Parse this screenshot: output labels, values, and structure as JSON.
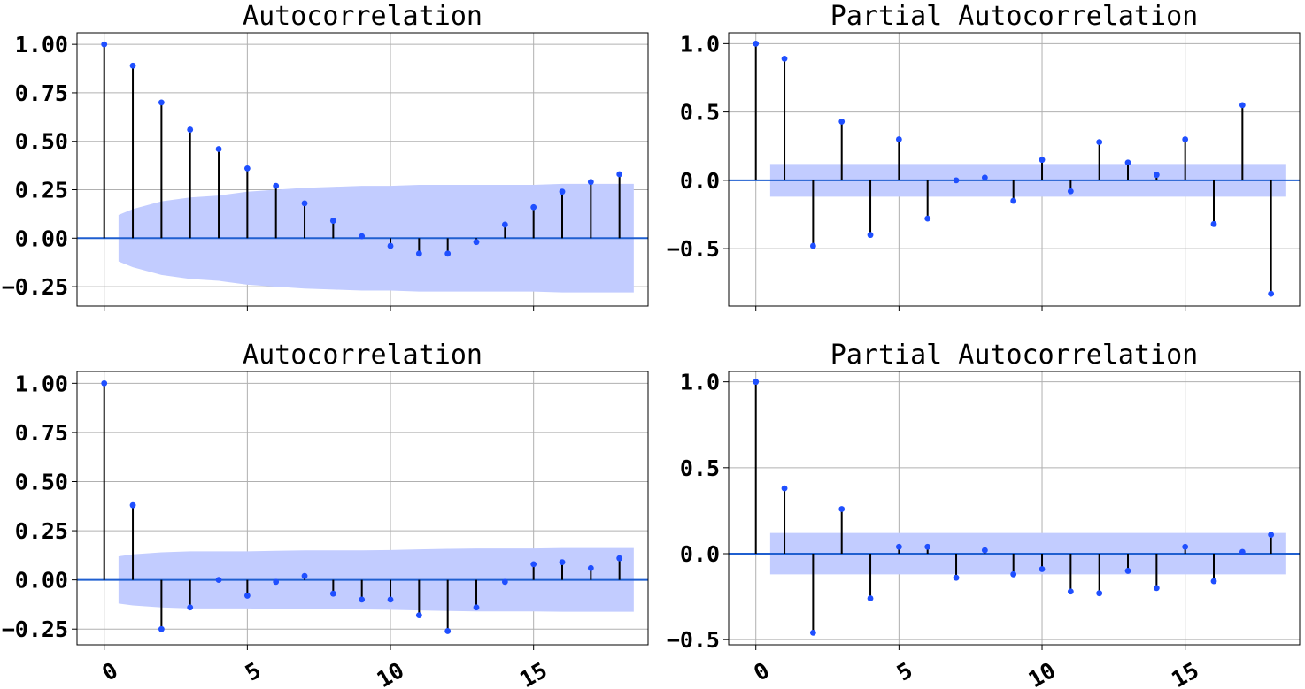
{
  "chart_data": [
    {
      "type": "stem",
      "title": "Autocorrelation",
      "x": [
        0,
        1,
        2,
        3,
        4,
        5,
        6,
        7,
        8,
        9,
        10,
        11,
        12,
        13,
        14,
        15,
        16,
        17,
        18
      ],
      "values": [
        1.0,
        0.89,
        0.7,
        0.56,
        0.46,
        0.36,
        0.27,
        0.18,
        0.09,
        0.01,
        -0.04,
        -0.08,
        -0.08,
        -0.02,
        0.07,
        0.16,
        0.24,
        0.29,
        0.33
      ],
      "confint": [
        0.12,
        0.15,
        0.19,
        0.21,
        0.22,
        0.24,
        0.25,
        0.26,
        0.265,
        0.27,
        0.27,
        0.275,
        0.275,
        0.275,
        0.275,
        0.275,
        0.28,
        0.28,
        0.28
      ],
      "xlim": [
        -0.95,
        19.0
      ],
      "ylim": [
        -0.35,
        1.06
      ],
      "xticks": [
        0,
        5,
        10,
        15
      ],
      "yticks": [
        "-0.25",
        "0.00",
        "0.25",
        "0.50",
        "0.75",
        "1.00"
      ],
      "show_xtick_labels": false,
      "grid": true
    },
    {
      "type": "stem",
      "title": "Partial Autocorrelation",
      "x": [
        0,
        1,
        2,
        3,
        4,
        5,
        6,
        7,
        8,
        9,
        10,
        11,
        12,
        13,
        14,
        15,
        16,
        17,
        18
      ],
      "values": [
        1.0,
        0.89,
        -0.48,
        0.43,
        -0.4,
        0.3,
        -0.28,
        0.0,
        0.02,
        -0.15,
        0.15,
        -0.08,
        0.28,
        0.13,
        0.04,
        0.3,
        -0.32,
        0.55,
        -0.83
      ],
      "confint": [
        0.12,
        0.12,
        0.12,
        0.12,
        0.12,
        0.12,
        0.12,
        0.12,
        0.12,
        0.12,
        0.12,
        0.12,
        0.12,
        0.12,
        0.12,
        0.12,
        0.12,
        0.12,
        0.12
      ],
      "xlim": [
        -0.95,
        19.0
      ],
      "ylim": [
        -0.92,
        1.08
      ],
      "xticks": [
        0,
        5,
        10,
        15
      ],
      "yticks": [
        "-0.5",
        "0.0",
        "0.5",
        "1.0"
      ],
      "show_xtick_labels": false,
      "grid": true
    },
    {
      "type": "stem",
      "title": "Autocorrelation",
      "x": [
        0,
        1,
        2,
        3,
        4,
        5,
        6,
        7,
        8,
        9,
        10,
        11,
        12,
        13,
        14,
        15,
        16,
        17,
        18
      ],
      "values": [
        1.0,
        0.38,
        -0.25,
        -0.14,
        0.0,
        -0.08,
        -0.01,
        0.02,
        -0.07,
        -0.1,
        -0.1,
        -0.18,
        -0.26,
        -0.14,
        -0.01,
        0.08,
        0.09,
        0.06,
        0.11
      ],
      "confint": [
        0.12,
        0.13,
        0.14,
        0.145,
        0.145,
        0.145,
        0.148,
        0.15,
        0.15,
        0.15,
        0.152,
        0.155,
        0.158,
        0.16,
        0.16,
        0.16,
        0.162,
        0.162,
        0.162
      ],
      "xlim": [
        -0.95,
        19.0
      ],
      "ylim": [
        -0.33,
        1.06
      ],
      "xticks": [
        0,
        5,
        10,
        15
      ],
      "yticks": [
        "-0.25",
        "0.00",
        "0.25",
        "0.50",
        "0.75",
        "1.00"
      ],
      "show_xtick_labels": true,
      "grid": true
    },
    {
      "type": "stem",
      "title": "Partial Autocorrelation",
      "x": [
        0,
        1,
        2,
        3,
        4,
        5,
        6,
        7,
        8,
        9,
        10,
        11,
        12,
        13,
        14,
        15,
        16,
        17,
        18
      ],
      "values": [
        1.0,
        0.38,
        -0.46,
        0.26,
        -0.26,
        0.04,
        0.04,
        -0.14,
        0.02,
        -0.12,
        -0.09,
        -0.22,
        -0.23,
        -0.1,
        -0.2,
        0.04,
        -0.16,
        0.01,
        0.11
      ],
      "confint": [
        0.12,
        0.12,
        0.12,
        0.12,
        0.12,
        0.12,
        0.12,
        0.12,
        0.12,
        0.12,
        0.12,
        0.12,
        0.12,
        0.12,
        0.12,
        0.12,
        0.12,
        0.12,
        0.12
      ],
      "xlim": [
        -0.95,
        19.0
      ],
      "ylim": [
        -0.53,
        1.06
      ],
      "xticks": [
        0,
        5,
        10,
        15
      ],
      "yticks": [
        "-0.5",
        "0.0",
        "0.5",
        "1.0"
      ],
      "show_xtick_labels": true,
      "grid": true
    }
  ],
  "colors": {
    "marker": "#1f4fff",
    "stem": "#000000",
    "zero_line": "#1f5fd0",
    "confint_fill": "#c2ccff",
    "grid": "#b0b0b0"
  }
}
